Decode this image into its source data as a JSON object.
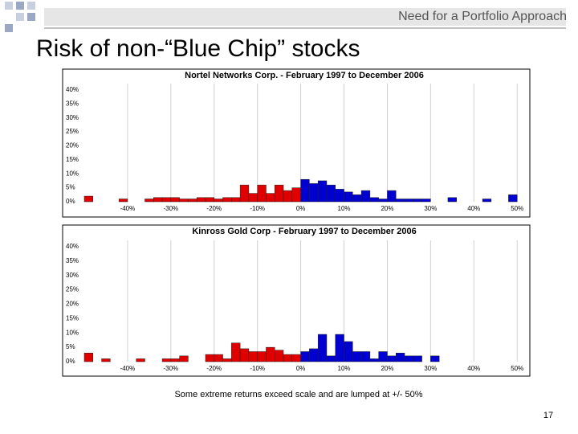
{
  "slide": {
    "header": "Need for a Portfolio Approach",
    "title": "Risk of non-“Blue Chip” stocks",
    "note": "Some extreme returns exceed scale and are lumped at +/- 50%",
    "page_number": "17"
  },
  "chart_data": [
    {
      "type": "histogram",
      "title": "Nortel Networks Corp. - February 1997 to December 2006",
      "bins": [
        -50,
        -48,
        -46,
        -44,
        -42,
        -40,
        -38,
        -36,
        -34,
        -32,
        -30,
        -28,
        -26,
        -24,
        -22,
        -20,
        -18,
        -16,
        -14,
        -12,
        -10,
        -8,
        -6,
        -4,
        -2,
        0,
        2,
        4,
        6,
        8,
        10,
        12,
        14,
        16,
        18,
        20,
        22,
        24,
        26,
        28,
        30,
        32,
        34,
        36,
        38,
        40,
        42,
        44,
        46,
        48,
        50
      ],
      "values": [
        2,
        0,
        0,
        0,
        1,
        0,
        0,
        1,
        1.5,
        1.5,
        1.5,
        1,
        1,
        1.5,
        1.5,
        1,
        1.5,
        1.5,
        6,
        3,
        6,
        3,
        6,
        4,
        5,
        8,
        6.5,
        7.5,
        6,
        4.5,
        3.5,
        2.5,
        4,
        1.5,
        1,
        4,
        1,
        1,
        1,
        1,
        0,
        0,
        1.5,
        0,
        0,
        0,
        1,
        0,
        0,
        2.5
      ],
      "colors": {
        "negative": "#e00000",
        "positive": "#0000d0"
      },
      "xlim": [
        -50,
        52
      ],
      "ylim": [
        0,
        40
      ],
      "xticks": [
        {
          "value": -40,
          "label": "-40%"
        },
        {
          "value": -30,
          "label": "-30%"
        },
        {
          "value": -20,
          "label": "-20%"
        },
        {
          "value": -10,
          "label": "-10%"
        },
        {
          "value": 0,
          "label": "0%"
        },
        {
          "value": 10,
          "label": "10%"
        },
        {
          "value": 20,
          "label": "20%"
        },
        {
          "value": 30,
          "label": "30%"
        },
        {
          "value": 40,
          "label": "40%"
        },
        {
          "value": 50,
          "label": "50%"
        }
      ],
      "yticks": [
        {
          "value": 0,
          "label": "0%"
        },
        {
          "value": 5,
          "label": "5%"
        },
        {
          "value": 10,
          "label": "10%"
        },
        {
          "value": 15,
          "label": "15%"
        },
        {
          "value": 20,
          "label": "20%"
        },
        {
          "value": 25,
          "label": "25%"
        },
        {
          "value": 30,
          "label": "30%"
        },
        {
          "value": 35,
          "label": "35%"
        },
        {
          "value": 40,
          "label": "40%"
        }
      ],
      "grid": "x"
    },
    {
      "type": "histogram",
      "title": "Kinross Gold Corp - February 1997 to December 2006",
      "bins": [
        -50,
        -48,
        -46,
        -44,
        -42,
        -40,
        -38,
        -36,
        -34,
        -32,
        -30,
        -28,
        -26,
        -24,
        -22,
        -20,
        -18,
        -16,
        -14,
        -12,
        -10,
        -8,
        -6,
        -4,
        -2,
        0,
        2,
        4,
        6,
        8,
        10,
        12,
        14,
        16,
        18,
        20,
        22,
        24,
        26,
        28,
        30,
        32,
        34,
        36,
        38,
        40,
        42,
        44,
        46,
        48,
        50
      ],
      "values": [
        3,
        0,
        1,
        0,
        0,
        0,
        1,
        0,
        0,
        1,
        1,
        2,
        0,
        0,
        2.5,
        2.5,
        1,
        6.5,
        4.5,
        3.5,
        3.5,
        5,
        4,
        2.5,
        2.5,
        3.5,
        4.5,
        9.5,
        2,
        9.5,
        7,
        3.5,
        3.5,
        1,
        3.5,
        2,
        3,
        2,
        2,
        0,
        2,
        0,
        0,
        0,
        0,
        0,
        0,
        0,
        0,
        0
      ],
      "colors": {
        "negative": "#e00000",
        "positive": "#0000d0"
      },
      "xlim": [
        -50,
        52
      ],
      "ylim": [
        0,
        40
      ],
      "xticks": [
        {
          "value": -40,
          "label": "-40%"
        },
        {
          "value": -30,
          "label": "-30%"
        },
        {
          "value": -20,
          "label": "-20%"
        },
        {
          "value": -10,
          "label": "-10%"
        },
        {
          "value": 0,
          "label": "0%"
        },
        {
          "value": 10,
          "label": "10%"
        },
        {
          "value": 20,
          "label": "20%"
        },
        {
          "value": 30,
          "label": "30%"
        },
        {
          "value": 40,
          "label": "40%"
        },
        {
          "value": 50,
          "label": "50%"
        }
      ],
      "yticks": [
        {
          "value": 0,
          "label": "0%"
        },
        {
          "value": 5,
          "label": "5%"
        },
        {
          "value": 10,
          "label": "10%"
        },
        {
          "value": 15,
          "label": "15%"
        },
        {
          "value": 20,
          "label": "20%"
        },
        {
          "value": 25,
          "label": "25%"
        },
        {
          "value": 30,
          "label": "30%"
        },
        {
          "value": 35,
          "label": "35%"
        },
        {
          "value": 40,
          "label": "40%"
        }
      ],
      "grid": "x"
    }
  ]
}
